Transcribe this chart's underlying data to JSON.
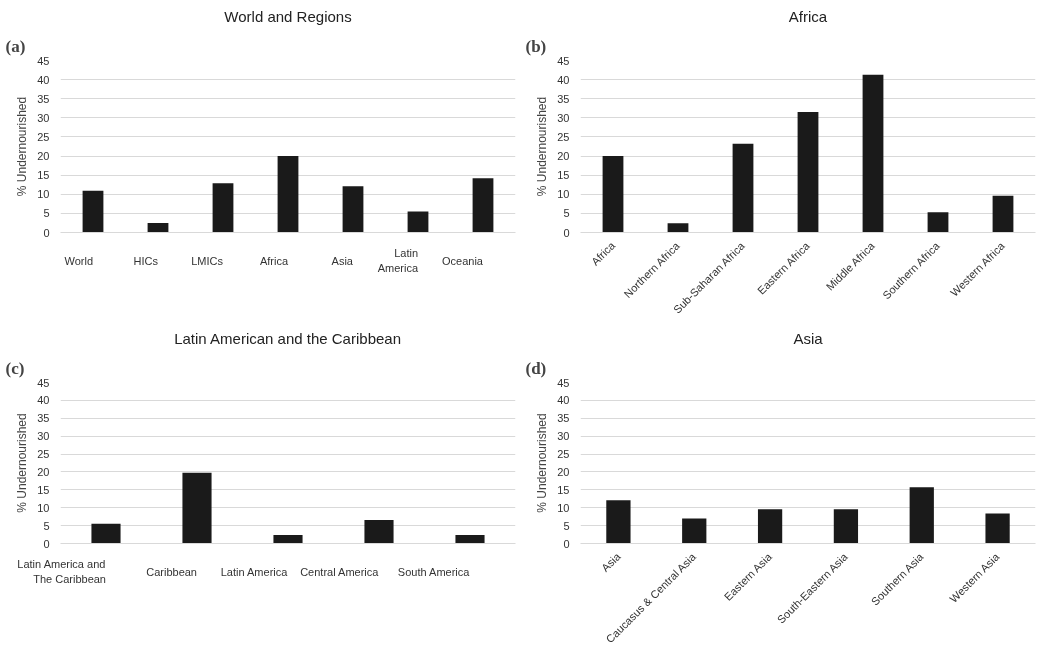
{
  "chart_data": [
    {
      "type": "bar",
      "title": "World and Regions",
      "annotations": [
        "(a)"
      ],
      "ylabel": "% Undernourished",
      "categories": [
        "World",
        "HICs",
        "LMICs",
        "Africa",
        "Asia",
        "Latin America",
        "Oceania"
      ],
      "values": [
        10.9,
        2.5,
        12.9,
        20.0,
        12.1,
        5.5,
        14.2
      ],
      "color": "#1a1a1a",
      "ylim": [
        0,
        45
      ],
      "yticks": [
        0,
        5,
        10,
        15,
        20,
        25,
        30,
        35,
        40,
        45
      ],
      "grid": "y"
    },
    {
      "type": "bar",
      "title": "Africa",
      "annotations": [
        "(b)"
      ],
      "ylabel": "% Undernourished",
      "categories": [
        "Africa",
        "Northern Africa",
        "Sub-Saharan Africa",
        "Eastern Africa",
        "Middle Africa",
        "Southern Africa",
        "Western Africa"
      ],
      "values": [
        20.0,
        2.4,
        23.2,
        31.5,
        41.3,
        5.3,
        9.6
      ],
      "color": "#1a1a1a",
      "ylim": [
        0,
        45
      ],
      "yticks": [
        0,
        5,
        10,
        15,
        20,
        25,
        30,
        35,
        40,
        45
      ],
      "grid": "y"
    },
    {
      "type": "bar",
      "title": "Latin American and the Caribbean",
      "annotations": [
        "(c)"
      ],
      "ylabel": "% Undernourished",
      "categories": [
        "Latin America and The Caribbean",
        "Caribbean",
        "Latin America",
        "Central America",
        "South America"
      ],
      "values": [
        5.5,
        19.8,
        2.4,
        6.6,
        2.4
      ],
      "color": "#1a1a1a",
      "ylim": [
        0,
        45
      ],
      "yticks": [
        0,
        5,
        10,
        15,
        20,
        25,
        30,
        35,
        40,
        45
      ],
      "grid": "y"
    },
    {
      "type": "bar",
      "title": "Asia",
      "annotations": [
        "(d)"
      ],
      "ylabel": "% Undernourished",
      "categories": [
        "Asia",
        "Caucasus & Central Asia",
        "Eastern Asia",
        "South-Eastern Asia",
        "Southern Asia",
        "Western Asia"
      ],
      "values": [
        12.1,
        7.0,
        9.6,
        9.6,
        15.7,
        8.4
      ],
      "color": "#1a1a1a",
      "ylim": [
        0,
        45
      ],
      "yticks": [
        0,
        5,
        10,
        15,
        20,
        25,
        30,
        35,
        40,
        45
      ],
      "grid": "y"
    }
  ]
}
